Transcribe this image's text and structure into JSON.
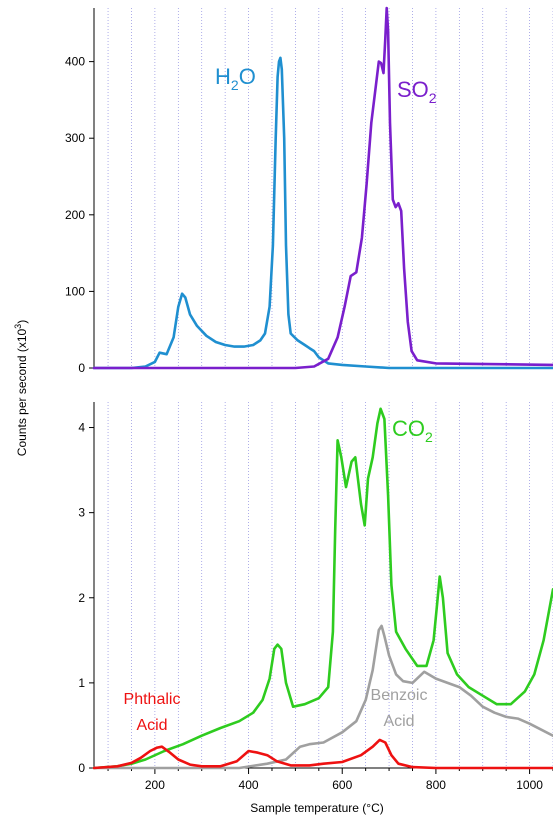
{
  "chart_data": [
    {
      "type": "line",
      "panel": "top",
      "ylim": [
        0,
        470
      ],
      "yticks": [
        0,
        100,
        200,
        300,
        400
      ],
      "xlim": [
        70,
        1050
      ],
      "grid_x": true,
      "series": [
        {
          "name": "H₂O",
          "label_main": "H",
          "label_sub": "2",
          "label_tail": "O",
          "color": "#1f8fd0",
          "points": [
            [
              70,
              0
            ],
            [
              150,
              0
            ],
            [
              180,
              2
            ],
            [
              200,
              8
            ],
            [
              210,
              20
            ],
            [
              225,
              18
            ],
            [
              240,
              40
            ],
            [
              250,
              80
            ],
            [
              258,
              97
            ],
            [
              265,
              92
            ],
            [
              275,
              70
            ],
            [
              290,
              55
            ],
            [
              310,
              42
            ],
            [
              330,
              34
            ],
            [
              350,
              30
            ],
            [
              370,
              28
            ],
            [
              390,
              28
            ],
            [
              410,
              30
            ],
            [
              425,
              36
            ],
            [
              435,
              45
            ],
            [
              445,
              80
            ],
            [
              452,
              160
            ],
            [
              458,
              300
            ],
            [
              462,
              380
            ],
            [
              465,
              400
            ],
            [
              468,
              405
            ],
            [
              471,
              390
            ],
            [
              476,
              300
            ],
            [
              480,
              160
            ],
            [
              485,
              70
            ],
            [
              490,
              45
            ],
            [
              505,
              36
            ],
            [
              520,
              30
            ],
            [
              530,
              26
            ],
            [
              540,
              22
            ],
            [
              550,
              14
            ],
            [
              570,
              6
            ],
            [
              600,
              4
            ],
            [
              650,
              2
            ],
            [
              700,
              0
            ],
            [
              800,
              0
            ],
            [
              1050,
              0
            ]
          ]
        },
        {
          "name": "SO₂",
          "label_main": "SO",
          "label_sub": "2",
          "label_tail": "",
          "color": "#7a1fcc",
          "points": [
            [
              70,
              0
            ],
            [
              500,
              0
            ],
            [
              540,
              2
            ],
            [
              570,
              12
            ],
            [
              590,
              40
            ],
            [
              605,
              80
            ],
            [
              618,
              120
            ],
            [
              630,
              125
            ],
            [
              642,
              170
            ],
            [
              652,
              240
            ],
            [
              662,
              320
            ],
            [
              672,
              370
            ],
            [
              678,
              400
            ],
            [
              683,
              398
            ],
            [
              688,
              385
            ],
            [
              692,
              430
            ],
            [
              695,
              470
            ],
            [
              698,
              440
            ],
            [
              702,
              320
            ],
            [
              708,
              220
            ],
            [
              714,
              210
            ],
            [
              720,
              215
            ],
            [
              726,
              205
            ],
            [
              732,
              130
            ],
            [
              740,
              60
            ],
            [
              748,
              22
            ],
            [
              760,
              10
            ],
            [
              800,
              6
            ],
            [
              1050,
              4
            ]
          ]
        }
      ]
    },
    {
      "type": "line",
      "panel": "bottom",
      "ylim": [
        0,
        4.3
      ],
      "yticks": [
        0,
        1,
        2,
        3,
        4
      ],
      "xlim": [
        70,
        1050
      ],
      "xticks": [
        200,
        400,
        600,
        800,
        1000
      ],
      "grid_x": true,
      "series": [
        {
          "name": "CO₂",
          "label_main": "CO",
          "label_sub": "2",
          "label_tail": "",
          "color": "#2ecc1f",
          "points": [
            [
              70,
              0
            ],
            [
              120,
              0.02
            ],
            [
              150,
              0.05
            ],
            [
              180,
              0.1
            ],
            [
              220,
              0.2
            ],
            [
              260,
              0.28
            ],
            [
              300,
              0.38
            ],
            [
              340,
              0.47
            ],
            [
              380,
              0.55
            ],
            [
              410,
              0.65
            ],
            [
              430,
              0.8
            ],
            [
              445,
              1.05
            ],
            [
              455,
              1.4
            ],
            [
              462,
              1.45
            ],
            [
              470,
              1.4
            ],
            [
              480,
              1.0
            ],
            [
              495,
              0.72
            ],
            [
              520,
              0.75
            ],
            [
              550,
              0.82
            ],
            [
              570,
              0.95
            ],
            [
              580,
              1.6
            ],
            [
              585,
              2.8
            ],
            [
              590,
              3.85
            ],
            [
              598,
              3.65
            ],
            [
              608,
              3.3
            ],
            [
              620,
              3.6
            ],
            [
              628,
              3.65
            ],
            [
              640,
              3.1
            ],
            [
              648,
              2.85
            ],
            [
              655,
              3.4
            ],
            [
              665,
              3.65
            ],
            [
              675,
              4.05
            ],
            [
              682,
              4.22
            ],
            [
              690,
              4.1
            ],
            [
              698,
              3.2
            ],
            [
              705,
              2.15
            ],
            [
              715,
              1.6
            ],
            [
              735,
              1.4
            ],
            [
              760,
              1.2
            ],
            [
              780,
              1.2
            ],
            [
              795,
              1.5
            ],
            [
              803,
              1.95
            ],
            [
              808,
              2.25
            ],
            [
              815,
              2.0
            ],
            [
              825,
              1.35
            ],
            [
              845,
              1.1
            ],
            [
              870,
              0.95
            ],
            [
              900,
              0.85
            ],
            [
              930,
              0.75
            ],
            [
              960,
              0.75
            ],
            [
              990,
              0.9
            ],
            [
              1010,
              1.1
            ],
            [
              1030,
              1.5
            ],
            [
              1050,
              2.1
            ]
          ]
        },
        {
          "name": "Benzoic Acid",
          "label_line1": "Benzoic",
          "label_line2": "Acid",
          "color": "#a0a0a0",
          "points": [
            [
              70,
              0
            ],
            [
              380,
              0
            ],
            [
              440,
              0.05
            ],
            [
              480,
              0.1
            ],
            [
              510,
              0.25
            ],
            [
              530,
              0.28
            ],
            [
              560,
              0.3
            ],
            [
              600,
              0.42
            ],
            [
              630,
              0.55
            ],
            [
              650,
              0.8
            ],
            [
              665,
              1.15
            ],
            [
              678,
              1.62
            ],
            [
              684,
              1.67
            ],
            [
              690,
              1.55
            ],
            [
              700,
              1.32
            ],
            [
              715,
              1.1
            ],
            [
              730,
              1.02
            ],
            [
              750,
              1.0
            ],
            [
              775,
              1.13
            ],
            [
              800,
              1.05
            ],
            [
              825,
              1.0
            ],
            [
              850,
              0.95
            ],
            [
              875,
              0.85
            ],
            [
              900,
              0.72
            ],
            [
              925,
              0.65
            ],
            [
              950,
              0.6
            ],
            [
              975,
              0.58
            ],
            [
              1000,
              0.52
            ],
            [
              1025,
              0.45
            ],
            [
              1050,
              0.38
            ]
          ]
        },
        {
          "name": "Phthalic Acid",
          "label_line1": "Phthalic",
          "label_line2": "Acid",
          "color": "#ee1111",
          "points": [
            [
              70,
              0
            ],
            [
              120,
              0.02
            ],
            [
              150,
              0.06
            ],
            [
              170,
              0.12
            ],
            [
              190,
              0.2
            ],
            [
              205,
              0.24
            ],
            [
              215,
              0.25
            ],
            [
              230,
              0.19
            ],
            [
              250,
              0.1
            ],
            [
              275,
              0.04
            ],
            [
              300,
              0.02
            ],
            [
              340,
              0.02
            ],
            [
              375,
              0.08
            ],
            [
              400,
              0.2
            ],
            [
              420,
              0.18
            ],
            [
              440,
              0.15
            ],
            [
              460,
              0.08
            ],
            [
              490,
              0.03
            ],
            [
              530,
              0.03
            ],
            [
              560,
              0.05
            ],
            [
              600,
              0.07
            ],
            [
              640,
              0.15
            ],
            [
              665,
              0.25
            ],
            [
              680,
              0.33
            ],
            [
              692,
              0.3
            ],
            [
              705,
              0.15
            ],
            [
              720,
              0.05
            ],
            [
              750,
              0.01
            ],
            [
              800,
              0
            ],
            [
              1050,
              0
            ]
          ]
        }
      ]
    }
  ],
  "axes": {
    "y_title": "Counts per second (x10",
    "y_title_sup": "3",
    "y_title_end": ")",
    "x_title": "Sample temperature (°C)"
  },
  "x_tick_labels": [
    "200",
    "400",
    "600",
    "800",
    "1000"
  ],
  "top_y_tick_labels": [
    "0",
    "100",
    "200",
    "300",
    "400"
  ],
  "bottom_y_tick_labels": [
    "0",
    "1",
    "2",
    "3",
    "4"
  ]
}
